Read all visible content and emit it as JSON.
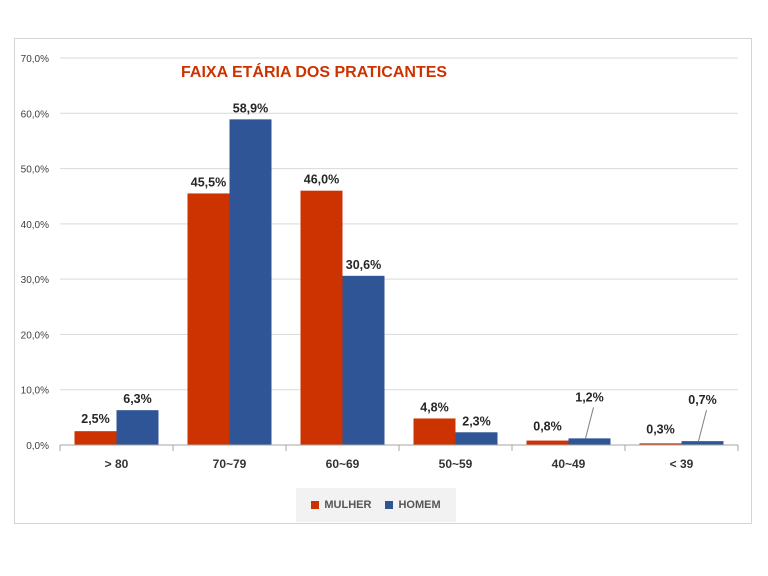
{
  "chart_data": {
    "type": "bar",
    "title": "FAIXA ETÁRIA  DOS PRATICANTES",
    "categories": [
      "> 80",
      "70~79",
      "60~69",
      "50~59",
      "40~49",
      "< 39"
    ],
    "series": [
      {
        "name": "MULHER",
        "color": "#cc3300",
        "values": [
          2.5,
          45.5,
          46.0,
          4.8,
          0.8,
          0.3
        ],
        "labels": [
          "2,5%",
          "45,5%",
          "46,0%",
          "4,8%",
          "0,8%",
          "0,3%"
        ]
      },
      {
        "name": "HOMEM",
        "color": "#2f5597",
        "values": [
          6.3,
          58.9,
          30.6,
          2.3,
          1.2,
          0.7
        ],
        "labels": [
          "6,3%",
          "58,9%",
          "30,6%",
          "2,3%",
          "1,2%",
          "0,7%"
        ]
      }
    ],
    "yticks": [
      "0,0%",
      "10,0%",
      "20,0%",
      "30,0%",
      "40,0%",
      "50,0%",
      "60,0%",
      "70,0%"
    ],
    "ylim": [
      0,
      70
    ],
    "grid": true,
    "legend_position": "bottom",
    "title_color": "#cc3300"
  }
}
